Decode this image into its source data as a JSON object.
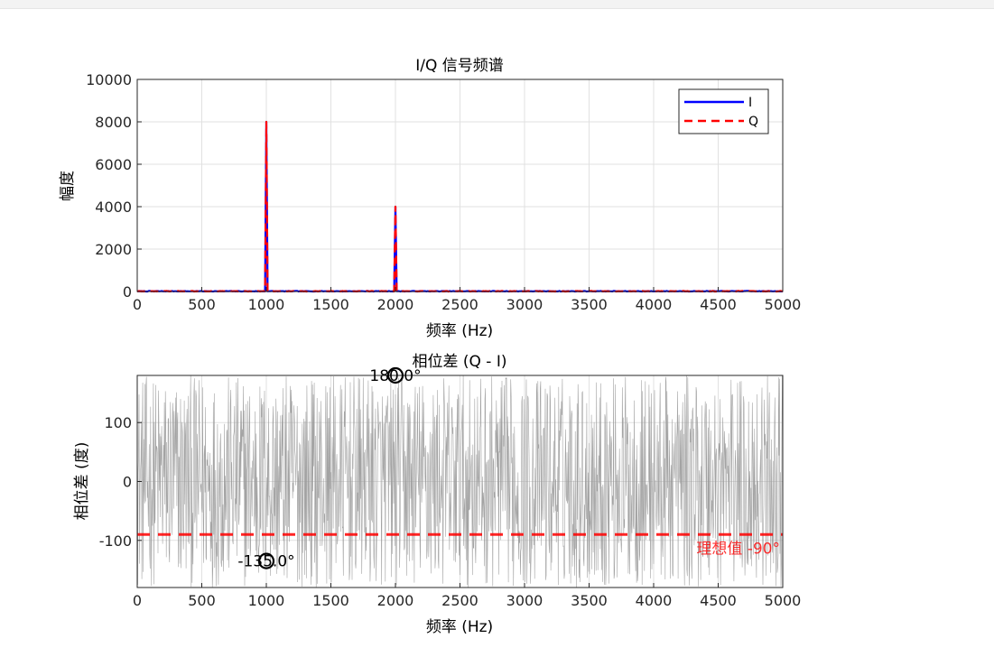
{
  "chart_data": [
    {
      "type": "line",
      "title": "I/Q 信号频谱",
      "xlabel": "频率 (Hz)",
      "ylabel": "幅度",
      "xlim": [
        0,
        5000
      ],
      "ylim": [
        0,
        10000
      ],
      "xticks": [
        0,
        500,
        1000,
        1500,
        2000,
        2500,
        3000,
        3500,
        4000,
        4500,
        5000
      ],
      "yticks": [
        0,
        2000,
        4000,
        6000,
        8000,
        10000
      ],
      "grid": true,
      "legend_position": "top-right",
      "series": [
        {
          "name": "I",
          "color": "#0000ff",
          "style": "solid",
          "peaks": [
            {
              "x": 1000,
              "y": 8000
            },
            {
              "x": 2000,
              "y": 4000
            }
          ]
        },
        {
          "name": "Q",
          "color": "#ff0000",
          "style": "dashed",
          "peaks": [
            {
              "x": 1000,
              "y": 8000
            },
            {
              "x": 2000,
              "y": 4000
            }
          ]
        }
      ]
    },
    {
      "type": "line",
      "title": "相位差 (Q - I)",
      "xlabel": "频率 (Hz)",
      "ylabel": "相位差 (度)",
      "xlim": [
        0,
        5000
      ],
      "ylim": [
        -180,
        180
      ],
      "xticks": [
        0,
        500,
        1000,
        1500,
        2000,
        2500,
        3000,
        3500,
        4000,
        4500,
        5000
      ],
      "yticks": [
        -100,
        0,
        100
      ],
      "grid": true,
      "series": [
        {
          "name": "",
          "color": "#999999",
          "style": "noise",
          "range": [
            -180,
            180
          ]
        }
      ],
      "reference_line": {
        "y": -90,
        "label": "理想值 -90°",
        "color": "#ff0000"
      },
      "markers": [
        {
          "x": 1000,
          "y": -135,
          "label": "-135.0°"
        },
        {
          "x": 2000,
          "y": 180,
          "label": "180.0°"
        }
      ]
    }
  ]
}
